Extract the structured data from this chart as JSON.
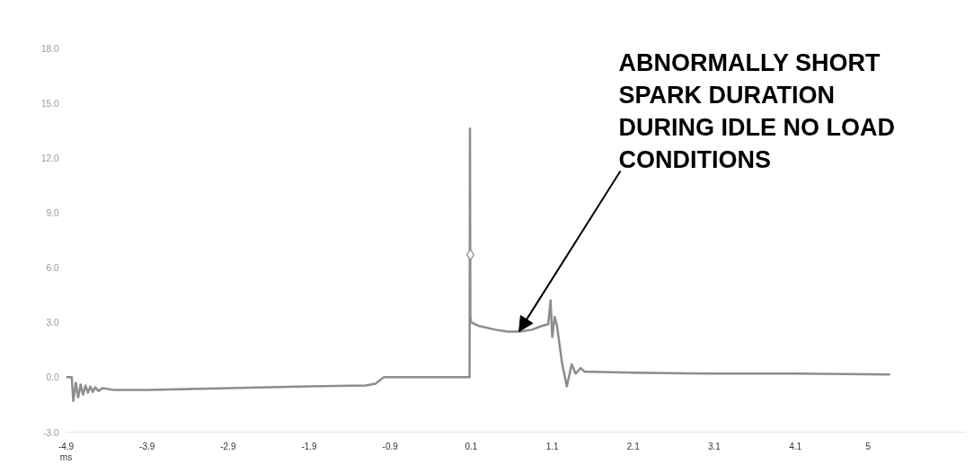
{
  "chart_data": {
    "type": "line",
    "xlabel": "ms",
    "xlim": [
      -4.9,
      6.2
    ],
    "ylim": [
      -3.0,
      18.0
    ],
    "xticks": [
      -4.9,
      -3.9,
      -2.9,
      -1.9,
      -0.9,
      0.1,
      1.1,
      2.1,
      3.1,
      4.1,
      5
    ],
    "yticks": [
      {
        "value": -3,
        "label": "-3.0"
      },
      {
        "value": 0,
        "label": "0.0"
      },
      {
        "value": 3,
        "label": "3.0"
      },
      {
        "value": 6,
        "label": "6.0"
      },
      {
        "value": 9,
        "label": "9.0"
      },
      {
        "value": 12,
        "label": "12.0"
      },
      {
        "value": 15,
        "label": "15.0"
      },
      {
        "value": 18,
        "label": "18.0"
      }
    ],
    "grid": false,
    "line_style": "solid",
    "series": [
      {
        "color": "#8c8c8c",
        "x": [
          -4.9,
          -4.83,
          -4.81,
          -4.78,
          -4.75,
          -4.72,
          -4.69,
          -4.66,
          -4.63,
          -4.6,
          -4.57,
          -4.54,
          -4.5,
          -4.45,
          -4.3,
          -3.9,
          -2.9,
          -1.9,
          -1.2,
          -1.08,
          -0.98,
          -0.5,
          0.0,
          0.08,
          0.085,
          0.09,
          0.1,
          0.2,
          0.4,
          0.55,
          0.7,
          0.85,
          0.97,
          1.05,
          1.08,
          1.1,
          1.13,
          1.16,
          1.22,
          1.28,
          1.34,
          1.39,
          1.45,
          1.5,
          1.6,
          2.1,
          3.1,
          4.1,
          5.27
        ],
        "values": [
          0.0,
          0.0,
          -1.3,
          -0.3,
          -1.1,
          -0.4,
          -0.95,
          -0.45,
          -0.85,
          -0.5,
          -0.8,
          -0.55,
          -0.75,
          -0.6,
          -0.7,
          -0.7,
          -0.6,
          -0.5,
          -0.45,
          -0.35,
          0.0,
          0.0,
          0.0,
          0.0,
          13.6,
          3.3,
          3.0,
          2.8,
          2.6,
          2.5,
          2.5,
          2.6,
          2.8,
          2.9,
          4.2,
          2.2,
          3.3,
          2.8,
          0.8,
          -0.5,
          0.7,
          0.2,
          0.5,
          0.3,
          0.3,
          0.25,
          0.2,
          0.2,
          0.15
        ]
      },
      {
        "type": "scatter",
        "marker": "diamond",
        "color": "#8c8c8c",
        "x": [
          0.09
        ],
        "values": [
          6.7
        ]
      }
    ],
    "annotations": [
      {
        "text": "ABNORMALLY SHORT\nSPARK DURATION\nDURING IDLE NO LOAD\nCONDITIONS",
        "x": 0.69,
        "y": 2.5
      }
    ]
  }
}
